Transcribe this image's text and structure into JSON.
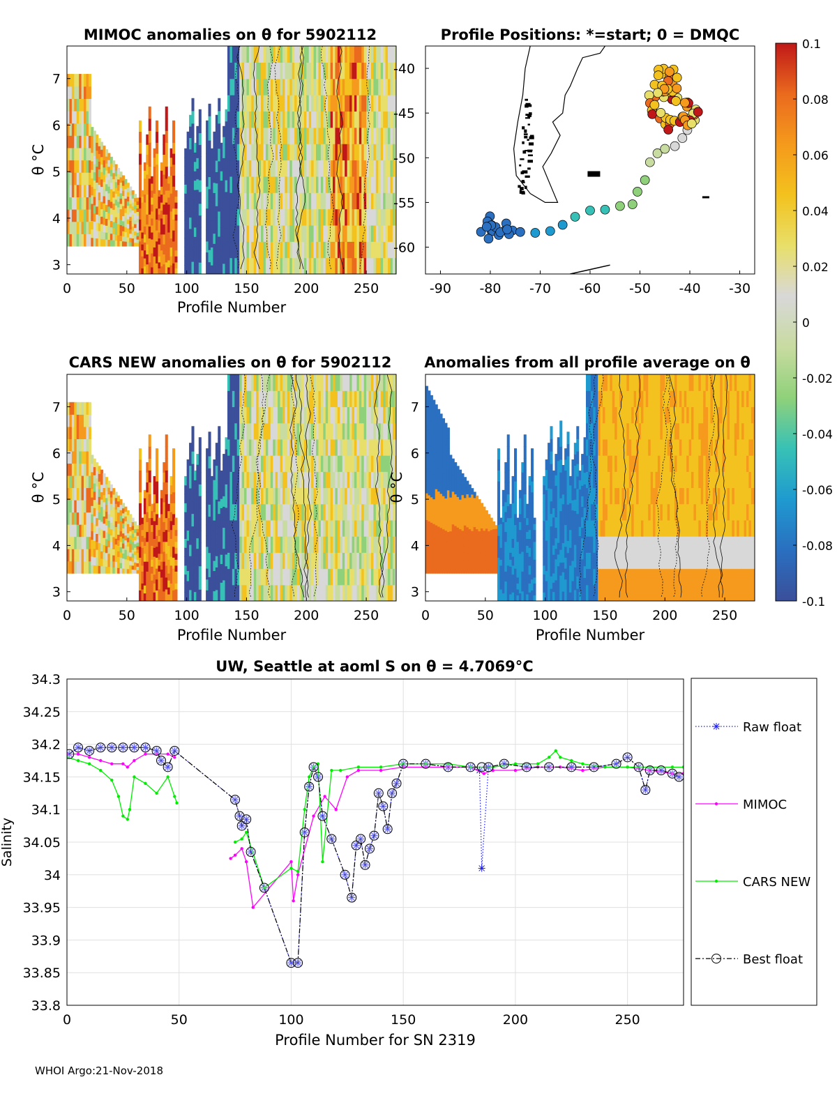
{
  "colors": {
    "colormap": [
      "#3b4f9a",
      "#2a6fc0",
      "#1f9ad0",
      "#37c1b6",
      "#8fd17a",
      "#c8dba0",
      "#d8d8d8",
      "#e8df6a",
      "#f3c21e",
      "#f59a1c",
      "#ea6a1e",
      "#c01818"
    ],
    "raw": "#1a1aff",
    "mimoc": "#ff00ff",
    "cars": "#00ee00",
    "best": "#000000",
    "grid": "#e0e0e0",
    "land": "#000000"
  },
  "footer": "WHOI Argo:21-Nov-2018",
  "colorbar": {
    "ticks": [
      "0.1",
      "0.08",
      "0.06",
      "0.04",
      "0.02",
      "0",
      "-0.02",
      "-0.04",
      "-0.06",
      "-0.08",
      "-0.1"
    ]
  },
  "chart_data": [
    {
      "type": "heatmap",
      "title": "MIMOC anomalies on θ  for 5902112",
      "xlabel": "Profile Number",
      "ylabel": "θ °C",
      "xlim": [
        0,
        275
      ],
      "ylim": [
        2.8,
        7.7
      ],
      "xticks": [
        "0",
        "50",
        "100",
        "150",
        "200",
        "250"
      ],
      "yticks": [
        "3",
        "4",
        "5",
        "6",
        "7"
      ],
      "clim": [
        -0.1,
        0.1
      ]
    },
    {
      "type": "scatter",
      "title": "Profile Positions: *=start; 0 = DMQC",
      "xlim": [
        -93,
        -27
      ],
      "ylim": [
        -63,
        -37.5
      ],
      "xticks": [
        "-90",
        "-80",
        "-70",
        "-60",
        "-50",
        "-40",
        "-30"
      ],
      "yticks": [
        "-40",
        "-45",
        "-50",
        "-55",
        "-60"
      ],
      "start": [
        -79.5,
        -55.7
      ],
      "track": [
        [
          -80.5,
          -57.5
        ],
        [
          -79.5,
          -58.2
        ],
        [
          -77,
          -58.1
        ],
        [
          -74,
          -58.3
        ],
        [
          -71,
          -58.4
        ],
        [
          -68,
          -58.2
        ],
        [
          -65.5,
          -57.5
        ],
        [
          -63,
          -56.6
        ],
        [
          -60,
          -55.9
        ],
        [
          -57,
          -55.8
        ],
        [
          -54,
          -55.4
        ],
        [
          -51.5,
          -55.2
        ],
        [
          -50.5,
          -53.8
        ],
        [
          -49,
          -52.5
        ],
        [
          -48,
          -50.5
        ],
        [
          -46.5,
          -49.5
        ],
        [
          -45,
          -49
        ],
        [
          -43,
          -48.7
        ],
        [
          -41.5,
          -47.8
        ],
        [
          -40.5,
          -46.9
        ],
        [
          -39,
          -45.8
        ],
        [
          -38.8,
          -44.6
        ],
        [
          -40.5,
          -43.8
        ],
        [
          -42.5,
          -43.3
        ],
        [
          -44.5,
          -42.7
        ],
        [
          -46,
          -42
        ],
        [
          -45.5,
          -40.6
        ],
        [
          -44,
          -40.8
        ],
        [
          -43.5,
          -41.7
        ],
        [
          -45,
          -42.3
        ],
        [
          -47,
          -43.2
        ],
        [
          -47.5,
          -44.7
        ],
        [
          -46,
          -45.6
        ],
        [
          -44,
          -46.2
        ],
        [
          -42,
          -46
        ],
        [
          -40,
          -45.8
        ]
      ],
      "clim": [
        1,
        275
      ]
    },
    {
      "type": "heatmap",
      "title": "CARS NEW anomalies on θ for 5902112",
      "xlabel": "Profile Number",
      "ylabel": "θ °C",
      "xlim": [
        0,
        275
      ],
      "ylim": [
        2.8,
        7.7
      ],
      "xticks": [
        "0",
        "50",
        "100",
        "150",
        "200",
        "250"
      ],
      "yticks": [
        "3",
        "4",
        "5",
        "6",
        "7"
      ],
      "clim": [
        -0.1,
        0.1
      ]
    },
    {
      "type": "heatmap",
      "title": "Anomalies from all profile average on θ",
      "xlabel": "Profile Number",
      "ylabel": "θ °C",
      "xlim": [
        0,
        275
      ],
      "ylim": [
        2.8,
        7.7
      ],
      "xticks": [
        "0",
        "50",
        "100",
        "150",
        "200",
        "250"
      ],
      "yticks": [
        "3",
        "4",
        "5",
        "6",
        "7"
      ],
      "clim": [
        -0.1,
        0.1
      ]
    },
    {
      "type": "line",
      "title": "UW, Seattle at aoml S on θ = 4.7069°C",
      "xlabel": "Profile Number for SN 2319",
      "ylabel": "Salinity",
      "xlim": [
        0,
        275
      ],
      "ylim": [
        33.8,
        34.3
      ],
      "xticks": [
        "0",
        "50",
        "100",
        "150",
        "200",
        "250"
      ],
      "yticks": [
        "34.3",
        "34.25",
        "34.2",
        "34.15",
        "34.1",
        "34.05",
        "34",
        "33.95",
        "33.9",
        "33.85",
        "33.8"
      ],
      "legend": [
        "Raw float",
        "MIMOC",
        "CARS NEW",
        "Best float"
      ],
      "series": [
        {
          "name": "Raw float",
          "x": [
            1,
            5,
            10,
            15,
            20,
            25,
            30,
            35,
            40,
            42,
            45,
            48,
            75,
            77,
            78,
            80,
            82,
            88,
            100,
            103,
            106,
            108,
            110,
            112,
            114,
            118,
            124,
            127,
            129,
            131,
            133,
            135,
            137,
            139,
            141,
            143,
            145,
            147,
            150,
            160,
            170,
            180,
            184,
            185,
            188,
            195,
            205,
            215,
            225,
            235,
            245,
            250,
            255,
            258,
            260,
            265,
            270,
            273
          ],
          "y": [
            34.185,
            34.195,
            34.19,
            34.195,
            34.195,
            34.195,
            34.195,
            34.195,
            34.19,
            34.175,
            34.165,
            34.19,
            34.115,
            34.09,
            34.075,
            34.085,
            34.035,
            33.98,
            33.865,
            33.865,
            34.065,
            34.135,
            34.165,
            34.15,
            34.09,
            34.055,
            34.0,
            33.965,
            34.045,
            34.055,
            34.015,
            34.04,
            34.06,
            34.125,
            34.105,
            34.07,
            34.125,
            34.14,
            34.17,
            34.17,
            34.165,
            34.165,
            34.16,
            34.01,
            34.165,
            34.17,
            34.165,
            34.165,
            34.165,
            34.165,
            34.17,
            34.18,
            34.165,
            34.13,
            34.16,
            34.16,
            34.155,
            34.15
          ]
        },
        {
          "name": "MIMOC",
          "x": [
            0,
            5,
            10,
            15,
            20,
            25,
            27,
            30,
            35,
            40,
            45,
            48,
            73,
            75,
            78,
            80,
            83,
            100,
            101,
            103,
            110,
            115,
            120,
            125,
            130,
            140,
            150,
            160,
            170,
            180,
            186,
            190,
            200,
            210,
            220,
            230,
            240,
            250,
            260,
            270,
            275
          ],
          "y": [
            34.185,
            34.185,
            34.18,
            34.175,
            34.17,
            34.17,
            34.165,
            34.175,
            34.185,
            34.185,
            34.185,
            34.18,
            34.025,
            34.03,
            34.04,
            34.02,
            33.95,
            34.02,
            33.96,
            34.0,
            34.09,
            34.12,
            34.1,
            34.15,
            34.16,
            34.16,
            34.165,
            34.165,
            34.165,
            34.165,
            34.155,
            34.16,
            34.16,
            34.165,
            34.165,
            34.16,
            34.165,
            34.165,
            34.16,
            34.155,
            34.155
          ]
        },
        {
          "name": "CARS NEW",
          "x": [
            0,
            5,
            10,
            15,
            20,
            23,
            25,
            27,
            28,
            30,
            35,
            40,
            45,
            48,
            49,
            75,
            78,
            80,
            88,
            100,
            103,
            106,
            108,
            110,
            112,
            114,
            118,
            122,
            130,
            140,
            150,
            160,
            170,
            180,
            190,
            200,
            210,
            215,
            218,
            220,
            225,
            230,
            240,
            250,
            260,
            270,
            275
          ],
          "y": [
            34.18,
            34.175,
            34.17,
            34.16,
            34.145,
            34.12,
            34.09,
            34.085,
            34.1,
            34.15,
            34.14,
            34.125,
            34.15,
            34.12,
            34.11,
            34.05,
            34.055,
            34.065,
            33.98,
            34.01,
            34.005,
            34.1,
            34.15,
            34.165,
            34.17,
            34.02,
            34.16,
            34.16,
            34.165,
            34.165,
            34.17,
            34.17,
            34.17,
            34.165,
            34.165,
            34.17,
            34.17,
            34.18,
            34.19,
            34.18,
            34.175,
            34.17,
            34.165,
            34.165,
            34.165,
            34.165,
            34.165
          ]
        },
        {
          "name": "Best float",
          "x": [
            1,
            5,
            10,
            15,
            20,
            25,
            30,
            35,
            40,
            42,
            45,
            48,
            75,
            77,
            78,
            80,
            82,
            88,
            100,
            103,
            106,
            108,
            110,
            112,
            114,
            118,
            124,
            127,
            129,
            131,
            133,
            135,
            137,
            139,
            141,
            143,
            145,
            147,
            150,
            160,
            170,
            180,
            185,
            188,
            195,
            205,
            215,
            225,
            235,
            245,
            250,
            255,
            258,
            260,
            265,
            270,
            273
          ],
          "y": [
            34.185,
            34.195,
            34.19,
            34.195,
            34.195,
            34.195,
            34.195,
            34.195,
            34.19,
            34.175,
            34.165,
            34.19,
            34.115,
            34.09,
            34.075,
            34.085,
            34.035,
            33.98,
            33.865,
            33.865,
            34.065,
            34.135,
            34.165,
            34.15,
            34.09,
            34.055,
            34.0,
            33.965,
            34.045,
            34.055,
            34.015,
            34.04,
            34.06,
            34.125,
            34.105,
            34.07,
            34.125,
            34.14,
            34.17,
            34.17,
            34.165,
            34.165,
            34.165,
            34.165,
            34.17,
            34.165,
            34.165,
            34.165,
            34.165,
            34.17,
            34.18,
            34.165,
            34.13,
            34.16,
            34.16,
            34.155,
            34.15
          ]
        }
      ]
    }
  ]
}
